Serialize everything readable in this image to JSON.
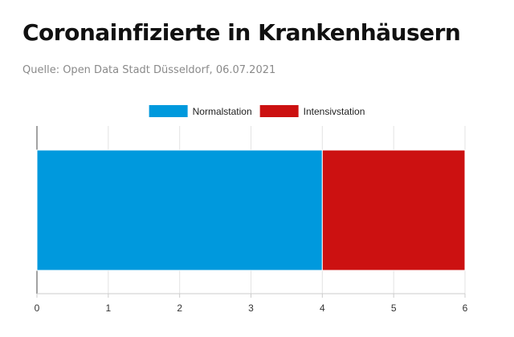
{
  "header": {
    "title": "Coronainfizierte in Krankenhäusern",
    "source": "Quelle: Open Data Stadt Düsseldorf, 06.07.2021"
  },
  "colors": {
    "normalstation": "#0099dd",
    "intensivstation": "#cc1111"
  },
  "chart_data": {
    "type": "bar",
    "orientation": "horizontal",
    "stacked": true,
    "categories": [
      ""
    ],
    "series": [
      {
        "name": "Normalstation",
        "values": [
          4
        ]
      },
      {
        "name": "Intensivstation",
        "values": [
          2
        ]
      }
    ],
    "xlim": [
      0,
      6
    ],
    "xticks": [
      "0",
      "1",
      "2",
      "3",
      "4",
      "5",
      "6"
    ],
    "grid": true,
    "legend": "top-center"
  }
}
